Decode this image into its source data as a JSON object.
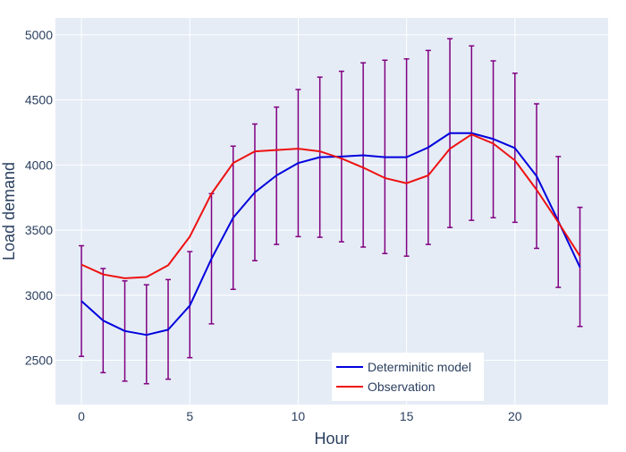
{
  "chart_data": {
    "type": "line",
    "xlabel": "Hour",
    "ylabel": "Load demand",
    "xlim": [
      -1.2,
      24.3
    ],
    "ylim": [
      2160,
      5130
    ],
    "xticks": [
      0,
      5,
      10,
      15,
      20
    ],
    "yticks": [
      2500,
      3000,
      3500,
      4000,
      4500,
      5000
    ],
    "grid": true,
    "legend_position": "bottom-center",
    "x": [
      0,
      1,
      2,
      3,
      4,
      5,
      6,
      7,
      8,
      9,
      10,
      11,
      12,
      13,
      14,
      15,
      16,
      17,
      18,
      19,
      20,
      21,
      22,
      23
    ],
    "series": [
      {
        "name": "Deterministic model",
        "color": "#0000dd",
        "values": [
          2955,
          2805,
          2725,
          2695,
          2735,
          2920,
          3280,
          3595,
          3790,
          3920,
          4015,
          4060,
          4065,
          4075,
          4060,
          4060,
          4135,
          4245,
          4245,
          4200,
          4130,
          3915,
          3570,
          3215
        ],
        "error_plus": [
          425,
          400,
          385,
          385,
          385,
          415,
          500,
          550,
          525,
          525,
          565,
          615,
          655,
          710,
          745,
          755,
          745,
          725,
          670,
          600,
          575,
          555,
          495,
          460
        ],
        "error_minus": [
          425,
          400,
          385,
          375,
          380,
          400,
          500,
          550,
          525,
          530,
          565,
          615,
          655,
          705,
          740,
          760,
          745,
          725,
          670,
          605,
          570,
          555,
          510,
          455
        ]
      },
      {
        "name": "Observation",
        "color": "#ee1111",
        "values": [
          3235,
          3160,
          3130,
          3140,
          3230,
          3450,
          3780,
          4015,
          4105,
          4115,
          4125,
          4105,
          4050,
          3980,
          3900,
          3860,
          3920,
          4125,
          4235,
          4165,
          4035,
          3810,
          3560,
          3300
        ]
      }
    ],
    "error_color": "#800080"
  },
  "legend": {
    "items": [
      {
        "label": "Determinitic model",
        "color": "#0000dd"
      },
      {
        "label": "Observation",
        "color": "#ee1111"
      }
    ]
  },
  "colors": {
    "plot_background": "#e5ecf6",
    "grid": "#ffffff",
    "text": "#2a3f5f"
  }
}
